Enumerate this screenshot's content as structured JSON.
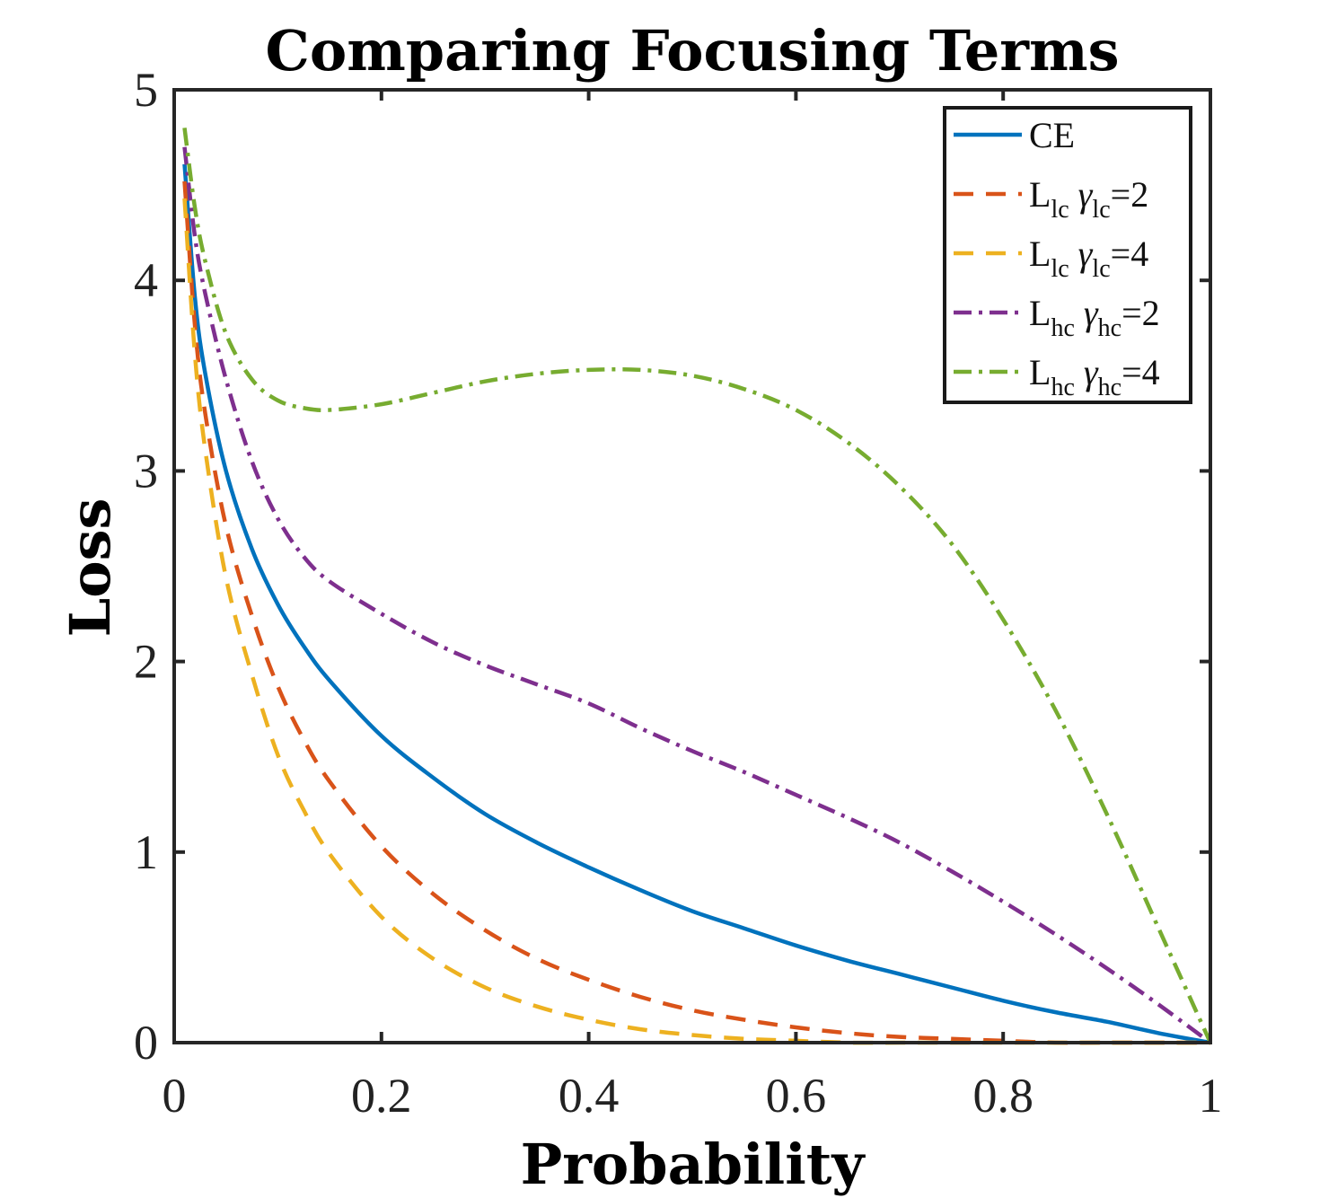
{
  "chart_data": {
    "type": "line",
    "title": "Comparing Focusing Terms",
    "xlabel": "Probability",
    "ylabel": "Loss",
    "xlim": [
      0,
      1
    ],
    "ylim": [
      0,
      5
    ],
    "xticks": [
      0,
      0.2,
      0.4,
      0.6,
      0.8,
      1
    ],
    "xtick_labels": [
      "0",
      "0.2",
      "0.4",
      "0.6",
      "0.8",
      "1"
    ],
    "yticks": [
      0,
      1,
      2,
      3,
      4,
      5
    ],
    "ytick_labels": [
      "0",
      "1",
      "2",
      "3",
      "4",
      "5"
    ],
    "grid": false,
    "legend_position": "top-right",
    "series": [
      {
        "id": "ce",
        "label": {
          "main": "CE",
          "sub": "",
          "greek": "",
          "greek_sub": "",
          "value": ""
        },
        "color": "#0072BD",
        "style": "solid",
        "x": [
          0.01,
          0.02,
          0.03,
          0.05,
          0.075,
          0.1,
          0.125,
          0.15,
          0.2,
          0.25,
          0.3,
          0.35,
          0.4,
          0.45,
          0.5,
          0.55,
          0.6,
          0.65,
          0.7,
          0.75,
          0.8,
          0.85,
          0.9,
          0.95,
          1.0
        ],
        "y": [
          4.61,
          3.91,
          3.51,
          3.0,
          2.59,
          2.3,
          2.08,
          1.9,
          1.61,
          1.39,
          1.2,
          1.05,
          0.92,
          0.8,
          0.69,
          0.6,
          0.51,
          0.43,
          0.36,
          0.29,
          0.22,
          0.16,
          0.11,
          0.05,
          0.0
        ]
      },
      {
        "id": "lc2",
        "label": {
          "main": "L",
          "sub": "lc",
          "greek": "γ",
          "greek_sub": "lc",
          "value": "=2"
        },
        "color": "#D95319",
        "style": "dashed",
        "x": [
          0.01,
          0.02,
          0.03,
          0.05,
          0.075,
          0.1,
          0.125,
          0.15,
          0.2,
          0.25,
          0.3,
          0.35,
          0.4,
          0.45,
          0.5,
          0.55,
          0.6,
          0.65,
          0.7,
          0.75,
          0.8,
          0.85,
          0.9,
          0.95,
          1.0
        ],
        "y": [
          4.52,
          3.76,
          3.3,
          2.71,
          2.24,
          1.87,
          1.59,
          1.37,
          1.03,
          0.78,
          0.59,
          0.44,
          0.33,
          0.24,
          0.17,
          0.12,
          0.08,
          0.05,
          0.03,
          0.02,
          0.01,
          0.0,
          0.0,
          0.0,
          0.0
        ]
      },
      {
        "id": "lc4",
        "label": {
          "main": "L",
          "sub": "lc",
          "greek": "γ",
          "greek_sub": "lc",
          "value": "=4"
        },
        "color": "#EDB120",
        "style": "dashed",
        "x": [
          0.01,
          0.02,
          0.03,
          0.05,
          0.075,
          0.1,
          0.125,
          0.15,
          0.2,
          0.25,
          0.3,
          0.35,
          0.4,
          0.45,
          0.5,
          0.55,
          0.6,
          0.65,
          0.7,
          0.75,
          0.8,
          0.85,
          0.9,
          0.95,
          1.0
        ],
        "y": [
          4.43,
          3.61,
          3.11,
          2.44,
          1.93,
          1.51,
          1.22,
          0.99,
          0.66,
          0.44,
          0.29,
          0.19,
          0.12,
          0.07,
          0.04,
          0.02,
          0.01,
          0.0,
          0.0,
          0.0,
          0.0,
          0.0,
          0.0,
          0.0,
          0.0
        ]
      },
      {
        "id": "hc2",
        "label": {
          "main": "L",
          "sub": "hc",
          "greek": "γ",
          "greek_sub": "hc",
          "value": "=2"
        },
        "color": "#7E2F8E",
        "style": "dashdot",
        "x": [
          0.01,
          0.02,
          0.03,
          0.05,
          0.075,
          0.1,
          0.125,
          0.15,
          0.2,
          0.25,
          0.3,
          0.35,
          0.4,
          0.45,
          0.5,
          0.55,
          0.6,
          0.65,
          0.7,
          0.75,
          0.8,
          0.85,
          0.9,
          0.95,
          1.0
        ],
        "y": [
          4.7,
          4.23,
          3.93,
          3.48,
          3.05,
          2.75,
          2.55,
          2.42,
          2.25,
          2.1,
          1.98,
          1.88,
          1.78,
          1.65,
          1.53,
          1.42,
          1.3,
          1.18,
          1.05,
          0.9,
          0.74,
          0.57,
          0.39,
          0.2,
          0.0
        ]
      },
      {
        "id": "hc4",
        "label": {
          "main": "L",
          "sub": "hc",
          "greek": "γ",
          "greek_sub": "hc",
          "value": "=4"
        },
        "color": "#77AC30",
        "style": "dashdot",
        "x": [
          0.01,
          0.02,
          0.03,
          0.05,
          0.075,
          0.1,
          0.125,
          0.15,
          0.2,
          0.25,
          0.3,
          0.35,
          0.4,
          0.45,
          0.5,
          0.55,
          0.6,
          0.65,
          0.7,
          0.75,
          0.8,
          0.85,
          0.9,
          0.95,
          1.0
        ],
        "y": [
          4.8,
          4.38,
          4.1,
          3.72,
          3.48,
          3.37,
          3.33,
          3.32,
          3.35,
          3.41,
          3.47,
          3.51,
          3.53,
          3.53,
          3.5,
          3.43,
          3.32,
          3.15,
          2.92,
          2.62,
          2.22,
          1.75,
          1.2,
          0.6,
          0.0
        ]
      }
    ]
  }
}
